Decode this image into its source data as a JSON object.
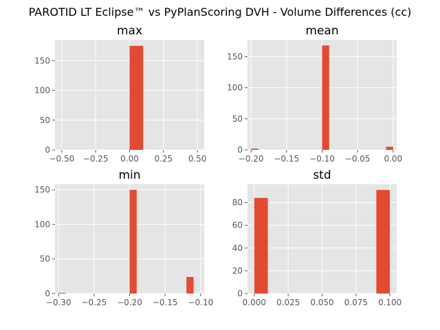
{
  "title": "PAROTID LT Eclipse™ vs PyPlanScoring DVH - Volume Differences (cc)",
  "colors": {
    "bar": "#E24A33",
    "axes_bg": "#E5E5E5",
    "grid": "#FFFFFF"
  },
  "chart_data": [
    {
      "type": "bar",
      "title": "max",
      "xlim": [
        -0.55,
        0.55
      ],
      "ylim": [
        0,
        185
      ],
      "xticks": [
        -0.5,
        -0.25,
        0,
        0.25,
        0.5
      ],
      "xtick_labels": [
        "−0.50",
        "−0.25",
        "0.00",
        "0.25",
        "0.50"
      ],
      "yticks": [
        0,
        50,
        100,
        150
      ],
      "ytick_labels": [
        "0",
        "50",
        "100",
        "150"
      ],
      "bins": [
        {
          "x0": 0.0,
          "x1": 0.1,
          "value": 175
        }
      ],
      "grid": true
    },
    {
      "type": "bar",
      "title": "mean",
      "xlim": [
        -0.205,
        0.005
      ],
      "ylim": [
        0,
        177
      ],
      "xticks": [
        -0.2,
        -0.15,
        -0.1,
        -0.05,
        0.0
      ],
      "xtick_labels": [
        "−0.20",
        "−0.15",
        "−0.10",
        "−0.05",
        "0.00"
      ],
      "yticks": [
        0,
        50,
        100,
        150
      ],
      "ytick_labels": [
        "0",
        "50",
        "100",
        "150"
      ],
      "bins": [
        {
          "x0": -0.2,
          "x1": -0.19,
          "value": 2
        },
        {
          "x0": -0.1,
          "x1": -0.09,
          "value": 168
        },
        {
          "x0": -0.01,
          "x1": 0.0,
          "value": 5
        }
      ],
      "grid": true
    },
    {
      "type": "bar",
      "title": "min",
      "xlim": [
        -0.305,
        -0.095
      ],
      "ylim": [
        0,
        158
      ],
      "xticks": [
        -0.3,
        -0.25,
        -0.2,
        -0.15,
        -0.1
      ],
      "xtick_labels": [
        "−0.30",
        "−0.25",
        "−0.20",
        "−0.15",
        "−0.10"
      ],
      "yticks": [
        0,
        50,
        100,
        150
      ],
      "ytick_labels": [
        "0",
        "50",
        "100",
        "150"
      ],
      "bins": [
        {
          "x0": -0.3,
          "x1": -0.29,
          "value": 1
        },
        {
          "x0": -0.2,
          "x1": -0.19,
          "value": 150
        },
        {
          "x0": -0.12,
          "x1": -0.11,
          "value": 24
        }
      ],
      "grid": true
    },
    {
      "type": "bar",
      "title": "std",
      "xlim": [
        -0.005,
        0.105
      ],
      "ylim": [
        0,
        96
      ],
      "xticks": [
        0.0,
        0.025,
        0.05,
        0.075,
        0.1
      ],
      "xtick_labels": [
        "0.000",
        "0.025",
        "0.050",
        "0.075",
        "0.100"
      ],
      "yticks": [
        0,
        20,
        40,
        60,
        80
      ],
      "ytick_labels": [
        "0",
        "20",
        "40",
        "60",
        "80"
      ],
      "bins": [
        {
          "x0": 0.0,
          "x1": 0.01,
          "value": 84
        },
        {
          "x0": 0.09,
          "x1": 0.1,
          "value": 91
        }
      ],
      "grid": true
    }
  ]
}
